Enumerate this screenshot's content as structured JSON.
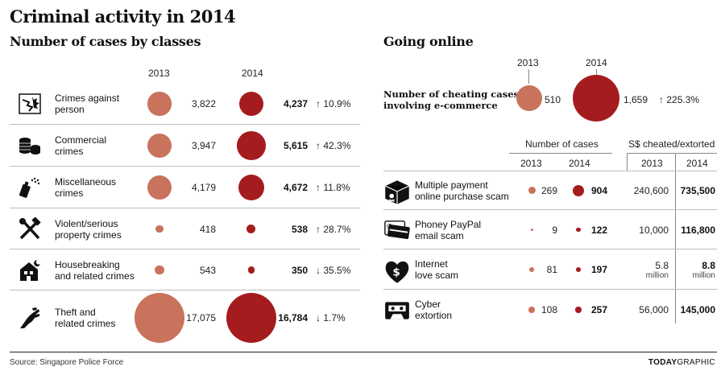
{
  "title": "Criminal activity in 2014",
  "left_title": "Number of cases by classes",
  "right_title": "Going online",
  "year_2013": "2013",
  "year_2014": "2014",
  "source": "Source: Singapore Police Force",
  "credit_bold": "TODAY",
  "credit_rest": "GRAPHIC",
  "colors": {
    "y2013": "#c9725c",
    "y2014": "#a51c1e"
  },
  "chart_data": [
    {
      "type": "bubble",
      "title": "Number of cases by classes",
      "series": [
        {
          "name": "2013",
          "color": "#c9725c"
        },
        {
          "name": "2014",
          "color": "#a51c1e"
        }
      ],
      "rows": [
        {
          "icon": "fist-impact-icon",
          "label": [
            "Crimes against",
            "person"
          ],
          "v2013": 3822,
          "v2014": 4237,
          "v2013_text": "3,822",
          "v2014_text": "4,237",
          "arrow": "↑",
          "change": "10.9%"
        },
        {
          "icon": "coins-icon",
          "label": [
            "Commercial",
            "crimes"
          ],
          "v2013": 3947,
          "v2014": 5615,
          "v2013_text": "3,947",
          "v2014_text": "5,615",
          "arrow": "↑",
          "change": "42.3%"
        },
        {
          "icon": "spray-can-icon",
          "label": [
            "Miscellaneous",
            "crimes"
          ],
          "v2013": 4179,
          "v2014": 4672,
          "v2013_text": "4,179",
          "v2014_text": "4,672",
          "arrow": "↑",
          "change": "11.8%"
        },
        {
          "icon": "hammer-wrench-icon",
          "label": [
            "Violent/serious",
            "property crimes"
          ],
          "v2013": 418,
          "v2014": 538,
          "v2013_text": "418",
          "v2014_text": "538",
          "arrow": "↑",
          "change": "28.7%"
        },
        {
          "icon": "house-night-icon",
          "label": [
            "Housebreaking",
            "and related crimes"
          ],
          "v2013": 543,
          "v2014": 350,
          "v2013_text": "543",
          "v2014_text": "350",
          "arrow": "↓",
          "change": "35.5%"
        },
        {
          "icon": "grabbing-hand-icon",
          "label": [
            "Theft and",
            "related crimes"
          ],
          "v2013": 17075,
          "v2014": 16784,
          "v2013_text": "17,075",
          "v2014_text": "16,784",
          "arrow": "↓",
          "change": "1.7%"
        }
      ]
    },
    {
      "type": "bubble",
      "title": "Number of cheating cases involving e-commerce",
      "label": [
        "Number of cheating cases",
        "involving e-commerce"
      ],
      "v2013": 510,
      "v2014": 1659,
      "v2013_text": "510",
      "v2014_text": "1,659",
      "arrow": "↑",
      "change": "225.3%"
    },
    {
      "type": "table",
      "col_group_cases": "Number of cases",
      "col_group_money": "S$ cheated/extorted",
      "rows": [
        {
          "icon": "box-skull-icon",
          "label": [
            "Multiple payment",
            "online purchase scam"
          ],
          "c2013": 269,
          "c2014": 904,
          "c2013_text": "269",
          "c2014_text": "904",
          "m2013": "240,600",
          "m2014": "735,500",
          "m2013_sub": "",
          "m2014_sub": ""
        },
        {
          "icon": "credit-card-icon",
          "label": [
            "Phoney PayPal",
            "email scam"
          ],
          "c2013": 9,
          "c2014": 122,
          "c2013_text": "9",
          "c2014_text": "122",
          "m2013": "10,000",
          "m2014": "116,800",
          "m2013_sub": "",
          "m2014_sub": ""
        },
        {
          "icon": "heart-dollar-icon",
          "label": [
            "Internet",
            "love scam"
          ],
          "c2013": 81,
          "c2014": 197,
          "c2013_text": "81",
          "c2014_text": "197",
          "m2013": "5.8",
          "m2014": "8.8",
          "m2013_sub": "million",
          "m2014_sub": "million"
        },
        {
          "icon": "cassette-icon",
          "label": [
            "Cyber",
            "extortion"
          ],
          "c2013": 108,
          "c2014": 257,
          "c2013_text": "108",
          "c2014_text": "257",
          "m2013": "56,000",
          "m2014": "145,000",
          "m2013_sub": "",
          "m2014_sub": ""
        }
      ]
    }
  ]
}
